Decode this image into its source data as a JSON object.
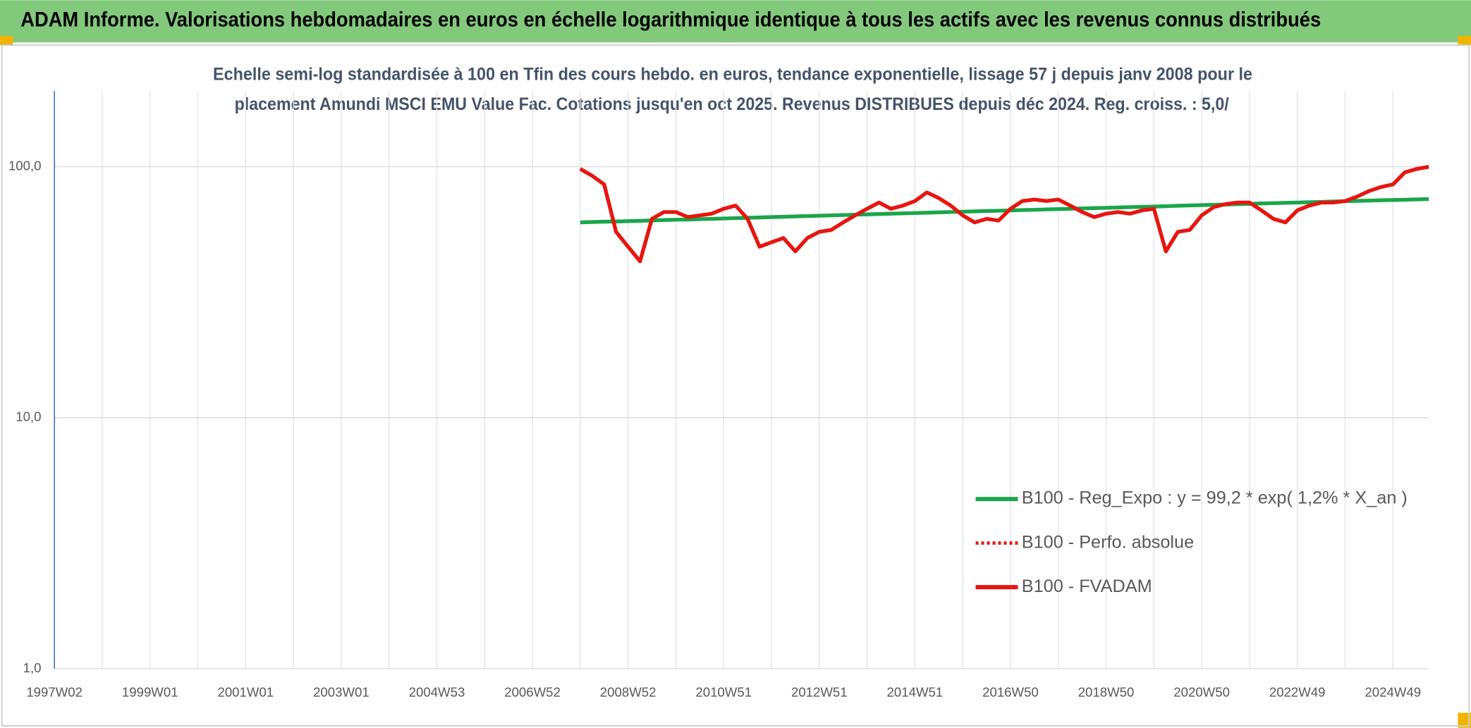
{
  "chart_data": {
    "type": "line",
    "title": "ADAM Informe. Valorisations hebdomadaires en euros en échelle logarithmique identique à tous les actifs avec les revenus connus distribués",
    "subtitle": [
      "Echelle semi-log standardisée à 100 en Tfin des cours hebdo. en euros, tendance exponentielle, lissage 57 j depuis janv 2008 pour le",
      "placement Amundi MSCI EMU Value Fac. Cotations jusqu'en oct 2025. Revenus DISTRIBUES depuis déc 2024. Reg. croiss. : 5,0/"
    ],
    "log_scale": true,
    "grid": true,
    "legend": "right",
    "ylim": [
      1,
      200
    ],
    "yticks": [
      {
        "value": 1,
        "label": "1,0"
      },
      {
        "value": 10,
        "label": "10,0"
      },
      {
        "value": 100,
        "label": "100,0"
      }
    ],
    "categories": [
      "1997W02",
      null,
      null,
      null,
      null,
      null,
      null,
      null,
      "1999W01",
      null,
      null,
      null,
      null,
      null,
      null,
      null,
      "2001W01",
      null,
      null,
      null,
      null,
      null,
      null,
      null,
      "2003W01",
      null,
      null,
      null,
      null,
      null,
      null,
      null,
      "2004W53",
      null,
      null,
      null,
      null,
      null,
      null,
      null,
      "2006W52",
      null,
      null,
      null,
      null,
      null,
      null,
      null,
      "2008W52",
      null,
      null,
      null,
      null,
      null,
      null,
      null,
      "2010W51",
      null,
      null,
      null,
      null,
      null,
      null,
      null,
      "2012W51",
      null,
      null,
      null,
      null,
      null,
      null,
      null,
      "2014W51",
      null,
      null,
      null,
      null,
      null,
      null,
      null,
      "2016W50",
      null,
      null,
      null,
      null,
      null,
      null,
      null,
      "2018W50",
      null,
      null,
      null,
      null,
      null,
      null,
      null,
      "2020W50",
      null,
      null,
      null,
      null,
      null,
      null,
      null,
      "2022W49",
      null,
      null,
      null,
      null,
      null,
      null,
      null,
      "2024W49",
      null,
      null,
      null
    ],
    "series": [
      {
        "name": "B100 - Reg_Expo : y = 99,2 * exp( 1,2% *  X_an )",
        "color": "#1aa64a",
        "style": "solid",
        "values": [
          null,
          null,
          null,
          null,
          null,
          null,
          null,
          null,
          null,
          null,
          null,
          null,
          null,
          null,
          null,
          null,
          null,
          null,
          null,
          null,
          null,
          null,
          null,
          null,
          null,
          null,
          null,
          null,
          null,
          null,
          null,
          null,
          null,
          null,
          null,
          null,
          null,
          null,
          null,
          null,
          null,
          null,
          null,
          null,
          60.0,
          60.2,
          60.4,
          60.5,
          60.7,
          60.9,
          61.1,
          61.3,
          61.5,
          61.6,
          61.8,
          62.0,
          62.2,
          62.4,
          62.6,
          62.8,
          63.0,
          63.2,
          63.4,
          63.6,
          63.8,
          64.0,
          64.2,
          64.4,
          64.6,
          64.8,
          65.0,
          65.2,
          65.4,
          65.6,
          65.8,
          66.0,
          66.2,
          66.4,
          66.6,
          66.8,
          67.0,
          67.2,
          67.4,
          67.6,
          67.8,
          68.0,
          68.2,
          68.4,
          68.6,
          68.8,
          69.0,
          69.2,
          69.4,
          69.6,
          69.9,
          70.1,
          70.3,
          70.5,
          70.7,
          70.9,
          71.1,
          71.4,
          71.6,
          71.8,
          72.0,
          72.2,
          72.4,
          72.7,
          72.9,
          73.1,
          73.3,
          73.5,
          73.7,
          73.9,
          74.1,
          74.3
        ]
      },
      {
        "name": "B100 - Perfo. absolue",
        "color": "#e8150f",
        "style": "dotted",
        "values": [
          null,
          null,
          null,
          null,
          null,
          null,
          null,
          null,
          null,
          null,
          null,
          null,
          null,
          null,
          null,
          null,
          null,
          null,
          null,
          null,
          null,
          null,
          null,
          null,
          null,
          null,
          null,
          null,
          null,
          null,
          null,
          null,
          null,
          null,
          null,
          null,
          null,
          null,
          null,
          null,
          null,
          null,
          null,
          null,
          98,
          92,
          85,
          55,
          48,
          42,
          62,
          66,
          66,
          63,
          64,
          65,
          68,
          70,
          62,
          48,
          50,
          52,
          46,
          52,
          55,
          56,
          60,
          64,
          68,
          72,
          68,
          70,
          73,
          79,
          75,
          70,
          64,
          60,
          62,
          61,
          68,
          73,
          74,
          73,
          74,
          70,
          66,
          63,
          65,
          66,
          65,
          67,
          68,
          46,
          55,
          56,
          64,
          69,
          71,
          72,
          72,
          67,
          62,
          60,
          67,
          70,
          72,
          72,
          73,
          76,
          80,
          83,
          85,
          95,
          98,
          100
        ]
      },
      {
        "name": "B100 - FVADAM",
        "color": "#e8150f",
        "style": "solid",
        "values": [
          null,
          null,
          null,
          null,
          null,
          null,
          null,
          null,
          null,
          null,
          null,
          null,
          null,
          null,
          null,
          null,
          null,
          null,
          null,
          null,
          null,
          null,
          null,
          null,
          null,
          null,
          null,
          null,
          null,
          null,
          null,
          null,
          null,
          null,
          null,
          null,
          null,
          null,
          null,
          null,
          null,
          null,
          null,
          null,
          98,
          92,
          85,
          55,
          48,
          42,
          62,
          66,
          66,
          63,
          64,
          65,
          68,
          70,
          62,
          48,
          50,
          52,
          46,
          52,
          55,
          56,
          60,
          64,
          68,
          72,
          68,
          70,
          73,
          79,
          75,
          70,
          64,
          60,
          62,
          61,
          68,
          73,
          74,
          73,
          74,
          70,
          66,
          63,
          65,
          66,
          65,
          67,
          68,
          46,
          55,
          56,
          64,
          69,
          71,
          72,
          72,
          67,
          62,
          60,
          67,
          70,
          72,
          72,
          73,
          76,
          80,
          83,
          85,
          95,
          98,
          100
        ]
      }
    ]
  }
}
